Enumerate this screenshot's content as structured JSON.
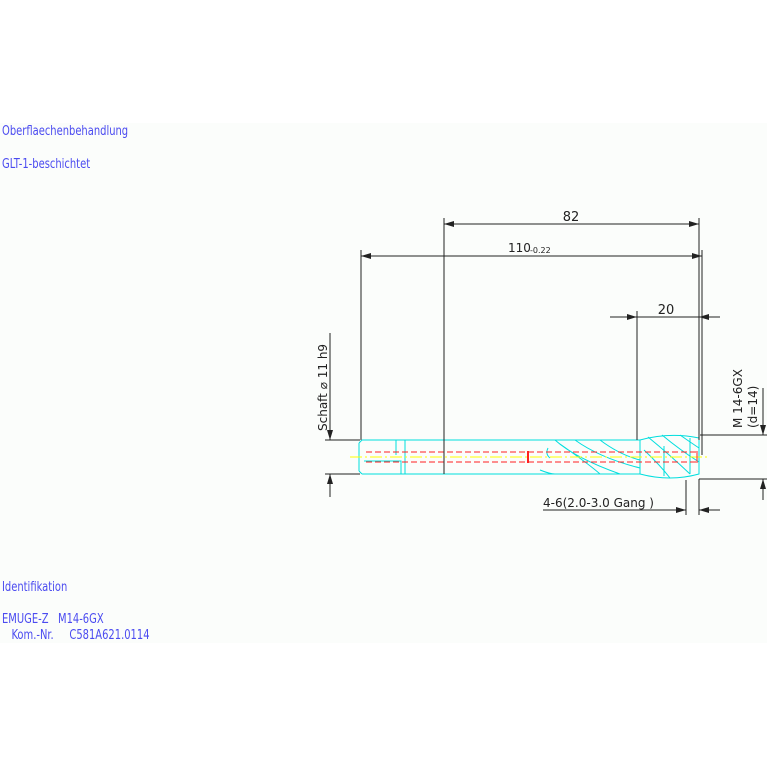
{
  "notes": {
    "surface_label": "Oberflaechenbehandlung",
    "surface_value": "GLT-1-beschichtet",
    "ident_label": "Identifikation",
    "ident_line1": "EMUGE-Z   M14-6GX",
    "ident_line2": "   Kom.-Nr.     C581A621.0114"
  },
  "dimensions": {
    "thread_length": "82",
    "total_length": "110",
    "total_length_tol": "-0.22",
    "chamfer_length": "20",
    "shank": "Schaft  ⌀ 11  h9",
    "thread": "M 14-6GX",
    "thread_d": "(d=14)",
    "chamfer_turns": "4-6(2.0-3.0 Gang  )"
  },
  "colors": {
    "text": "#4b4bf0",
    "outline": "#00e5e5",
    "hidden": "#ff2020",
    "center": "#ffff00",
    "dim": "#222222"
  }
}
